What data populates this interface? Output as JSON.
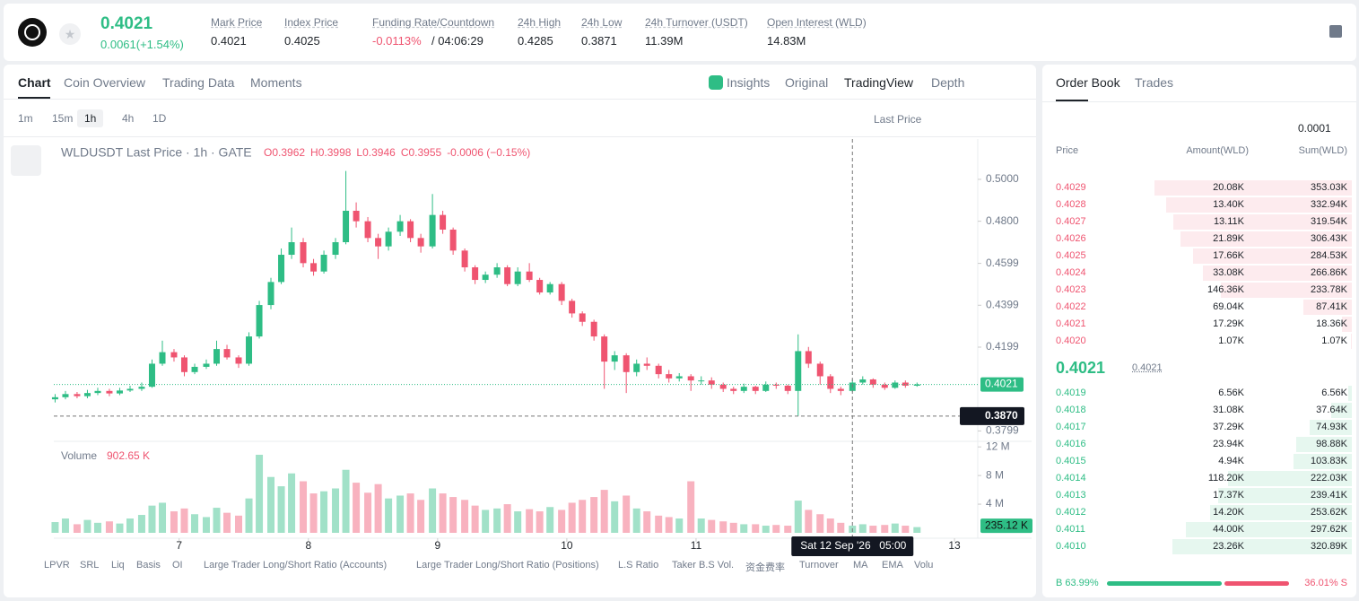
{
  "header": {
    "price": "0.4021",
    "change": "0.0061(+1.54%)",
    "stats": [
      {
        "label": "Mark Price",
        "value": "0.4021"
      },
      {
        "label": "Index Price",
        "value": "0.4025"
      },
      {
        "label": "Funding Rate/Countdown",
        "value": "-0.0113%",
        "extra": "/ 04:06:29"
      },
      {
        "label": "24h High",
        "value": "0.4285"
      },
      {
        "label": "24h Low",
        "value": "0.3871"
      },
      {
        "label": "24h Turnover (USDT)",
        "value": "11.39M"
      },
      {
        "label": "Open Interest (WLD)",
        "value": "14.83M"
      }
    ]
  },
  "chart_tabs": [
    "Chart",
    "Coin Overview",
    "Trading Data",
    "Moments"
  ],
  "view_tabs": [
    "Insights",
    "Original",
    "TradingView",
    "Depth"
  ],
  "intervals": [
    "1m",
    "15m",
    "1h",
    "4h",
    "1D"
  ],
  "price_source": "Last Price",
  "chart_data": {
    "type": "candlestick",
    "title": "WLDUSDT Last Price · 1h · GATE",
    "ohlc_legend": [
      "O0.3962",
      "H0.3998",
      "L0.3946",
      "C0.3955",
      "-0.0006 (−0.15%)"
    ],
    "x": [
      6.04,
      6.12,
      6.21,
      6.29,
      6.37,
      6.46,
      6.54,
      6.62,
      6.71,
      6.79,
      6.87,
      6.96,
      7.04,
      7.12,
      7.21,
      7.29,
      7.37,
      7.46,
      7.54,
      7.62,
      7.71,
      7.79,
      7.87,
      7.96,
      8.04,
      8.12,
      8.21,
      8.29,
      8.37,
      8.46,
      8.54,
      8.62,
      8.71,
      8.79,
      8.87,
      8.96,
      9.04,
      9.12,
      9.21,
      9.29,
      9.37,
      9.46,
      9.54,
      9.62,
      9.71,
      9.79,
      9.87,
      9.96,
      10.04,
      10.12,
      10.21,
      10.29,
      10.37,
      10.46,
      10.54,
      10.62,
      10.71,
      10.79,
      10.87,
      10.96,
      11.04,
      11.12,
      11.21,
      11.29,
      11.37,
      11.46,
      11.54,
      11.62,
      11.71,
      11.79,
      11.87,
      11.96,
      12.04,
      12.12,
      12.21,
      12.29,
      12.37,
      12.46,
      12.54,
      12.62,
      12.71
    ],
    "open": [
      0.395,
      0.396,
      0.3975,
      0.3965,
      0.398,
      0.399,
      0.3978,
      0.3992,
      0.4,
      0.401,
      0.412,
      0.4175,
      0.415,
      0.408,
      0.4105,
      0.412,
      0.419,
      0.415,
      0.412,
      0.425,
      0.44,
      0.451,
      0.464,
      0.47,
      0.46,
      0.456,
      0.464,
      0.47,
      0.485,
      0.48,
      0.472,
      0.468,
      0.475,
      0.48,
      0.472,
      0.468,
      0.483,
      0.476,
      0.466,
      0.458,
      0.452,
      0.4545,
      0.458,
      0.45,
      0.456,
      0.452,
      0.446,
      0.45,
      0.442,
      0.436,
      0.432,
      0.425,
      0.413,
      0.416,
      0.408,
      0.412,
      0.411,
      0.407,
      0.405,
      0.406,
      0.404,
      0.404,
      0.402,
      0.4,
      0.399,
      0.401,
      0.399,
      0.402,
      0.4015,
      0.399,
      0.418,
      0.412,
      0.406,
      0.4,
      0.399,
      0.403,
      0.4045,
      0.402,
      0.4005,
      0.403,
      0.4015
    ],
    "high": [
      0.3975,
      0.399,
      0.3985,
      0.3995,
      0.4005,
      0.4,
      0.4005,
      0.4015,
      0.403,
      0.414,
      0.423,
      0.419,
      0.416,
      0.412,
      0.414,
      0.423,
      0.421,
      0.416,
      0.427,
      0.442,
      0.453,
      0.467,
      0.477,
      0.472,
      0.462,
      0.466,
      0.472,
      0.504,
      0.489,
      0.482,
      0.474,
      0.477,
      0.483,
      0.481,
      0.474,
      0.493,
      0.485,
      0.477,
      0.467,
      0.459,
      0.456,
      0.46,
      0.459,
      0.458,
      0.46,
      0.453,
      0.451,
      0.451,
      0.443,
      0.437,
      0.433,
      0.426,
      0.418,
      0.417,
      0.414,
      0.415,
      0.412,
      0.409,
      0.4075,
      0.407,
      0.406,
      0.4055,
      0.403,
      0.401,
      0.4025,
      0.4015,
      0.4035,
      0.403,
      0.402,
      0.426,
      0.42,
      0.413,
      0.407,
      0.401,
      0.4045,
      0.406,
      0.405,
      0.403,
      0.404,
      0.404,
      0.403
    ],
    "low": [
      0.3935,
      0.395,
      0.3955,
      0.3955,
      0.397,
      0.3965,
      0.397,
      0.3985,
      0.399,
      0.4005,
      0.411,
      0.413,
      0.406,
      0.407,
      0.4095,
      0.411,
      0.414,
      0.41,
      0.411,
      0.424,
      0.438,
      0.45,
      0.462,
      0.458,
      0.454,
      0.455,
      0.462,
      0.469,
      0.477,
      0.47,
      0.462,
      0.466,
      0.473,
      0.47,
      0.465,
      0.467,
      0.474,
      0.464,
      0.456,
      0.45,
      0.4505,
      0.453,
      0.449,
      0.449,
      0.451,
      0.445,
      0.445,
      0.44,
      0.434,
      0.43,
      0.423,
      0.4,
      0.409,
      0.398,
      0.406,
      0.409,
      0.405,
      0.403,
      0.4035,
      0.399,
      0.402,
      0.4,
      0.3985,
      0.3975,
      0.398,
      0.3975,
      0.3985,
      0.4,
      0.3975,
      0.387,
      0.41,
      0.402,
      0.398,
      0.397,
      0.3985,
      0.402,
      0.4005,
      0.3995,
      0.4,
      0.4005,
      0.401
    ],
    "close": [
      0.396,
      0.3975,
      0.3965,
      0.398,
      0.399,
      0.3978,
      0.3992,
      0.4,
      0.401,
      0.412,
      0.4175,
      0.415,
      0.408,
      0.4105,
      0.412,
      0.419,
      0.415,
      0.412,
      0.425,
      0.44,
      0.451,
      0.464,
      0.47,
      0.46,
      0.456,
      0.464,
      0.47,
      0.485,
      0.48,
      0.472,
      0.468,
      0.475,
      0.48,
      0.472,
      0.468,
      0.483,
      0.476,
      0.466,
      0.458,
      0.452,
      0.4545,
      0.458,
      0.45,
      0.456,
      0.452,
      0.446,
      0.45,
      0.442,
      0.436,
      0.432,
      0.425,
      0.413,
      0.416,
      0.408,
      0.412,
      0.411,
      0.407,
      0.405,
      0.406,
      0.404,
      0.404,
      0.402,
      0.4,
      0.399,
      0.401,
      0.399,
      0.402,
      0.4015,
      0.399,
      0.418,
      0.412,
      0.406,
      0.4,
      0.399,
      0.403,
      0.4045,
      0.402,
      0.4005,
      0.403,
      0.4015,
      0.4021
    ],
    "volume": [
      1.5,
      2.0,
      1.2,
      1.8,
      1.4,
      1.6,
      1.3,
      2.0,
      2.5,
      3.8,
      4.2,
      3.0,
      3.4,
      2.6,
      2.2,
      3.5,
      2.8,
      2.4,
      4.8,
      10.9,
      7.8,
      6.5,
      8.3,
      7.2,
      5.5,
      5.8,
      6.2,
      8.8,
      7.0,
      5.6,
      6.8,
      4.8,
      5.2,
      5.5,
      4.6,
      6.2,
      5.5,
      5.0,
      4.6,
      3.8,
      3.2,
      3.4,
      4.0,
      3.0,
      3.3,
      3.0,
      3.6,
      3.2,
      4.2,
      4.6,
      5.0,
      6.0,
      4.4,
      5.2,
      3.4,
      3.0,
      2.4,
      2.2,
      2.0,
      7.2,
      2.0,
      1.8,
      1.6,
      1.4,
      1.2,
      1.2,
      1.0,
      1.1,
      1.0,
      4.5,
      3.2,
      2.6,
      2.0,
      1.4,
      1.0,
      1.2,
      1.0,
      1.1,
      1.3,
      1.0,
      0.8
    ],
    "xlim": [
      6.03,
      13.18
    ],
    "xticks": [
      7,
      8,
      9,
      10,
      11,
      13
    ],
    "ylim": [
      0.3758,
      0.5171
    ],
    "yticks": [
      {
        "value": 0.5,
        "label": "0.5000"
      },
      {
        "value": 0.48,
        "label": "0.4800"
      },
      {
        "value": 0.4599,
        "label": "0.4599"
      },
      {
        "value": 0.4399,
        "label": "0.4399"
      },
      {
        "value": 0.4199,
        "label": "0.4199"
      },
      {
        "value": 0.3799,
        "label": "0.3799"
      }
    ],
    "volume_label": "Volume",
    "volume_value": "902.65 K",
    "y2lim": [
      0,
      12.4
    ],
    "y2ticks": [
      {
        "value": 12,
        "label": "12 M"
      },
      {
        "value": 8,
        "label": "8 M"
      },
      {
        "value": 4,
        "label": "4 M"
      }
    ],
    "last_price": 0.4021,
    "last_volume": {
      "value": 0.23512,
      "label": "235.12 K"
    },
    "crosshair": {
      "x": 12.21,
      "y": {
        "value": 0.387,
        "label": "0.3870"
      },
      "time": "Sat 12 Sep '26",
      "hour": "05:00"
    },
    "up_color": "#2ebd85",
    "down_color": "#ef5470"
  },
  "indicators": [
    "LPVR",
    "SRL",
    "Liq",
    "Basis",
    "OI",
    "Large Trader Long/Short Ratio (Accounts)",
    "Large Trader Long/Short Ratio (Positions)",
    "L.S Ratio",
    "Taker B.S Vol.",
    "资金费率",
    "Turnover",
    "MA",
    "EMA",
    "Volu"
  ],
  "order_book": {
    "tabs": [
      "Order Book",
      "Trades"
    ],
    "tick": "0.0001",
    "headers": [
      "Price",
      "Amount(WLD)",
      "Sum(WLD)"
    ],
    "asks": [
      [
        "0.4029",
        "20.08K",
        "353.03K"
      ],
      [
        "0.4028",
        "13.40K",
        "332.94K"
      ],
      [
        "0.4027",
        "13.11K",
        "319.54K"
      ],
      [
        "0.4026",
        "21.89K",
        "306.43K"
      ],
      [
        "0.4025",
        "17.66K",
        "284.53K"
      ],
      [
        "0.4024",
        "33.08K",
        "266.86K"
      ],
      [
        "0.4023",
        "146.36K",
        "233.78K"
      ],
      [
        "0.4022",
        "69.04K",
        "87.41K"
      ],
      [
        "0.4021",
        "17.29K",
        "18.36K"
      ],
      [
        "0.4020",
        "1.07K",
        "1.07K"
      ]
    ],
    "mid": "0.4021",
    "mid_ref": "0.4021",
    "bids": [
      [
        "0.4019",
        "6.56K",
        "6.56K"
      ],
      [
        "0.4018",
        "31.08K",
        "37.64K"
      ],
      [
        "0.4017",
        "37.29K",
        "74.93K"
      ],
      [
        "0.4016",
        "23.94K",
        "98.88K"
      ],
      [
        "0.4015",
        "4.94K",
        "103.83K"
      ],
      [
        "0.4014",
        "118.20K",
        "222.03K"
      ],
      [
        "0.4013",
        "17.37K",
        "239.41K"
      ],
      [
        "0.4012",
        "14.20K",
        "253.62K"
      ],
      [
        "0.4011",
        "44.00K",
        "297.62K"
      ],
      [
        "0.4010",
        "23.26K",
        "320.89K"
      ]
    ],
    "buy": {
      "value": 63.99,
      "label": "B 63.99%"
    },
    "sell": {
      "value": 36.01,
      "label": "36.01% S"
    }
  }
}
